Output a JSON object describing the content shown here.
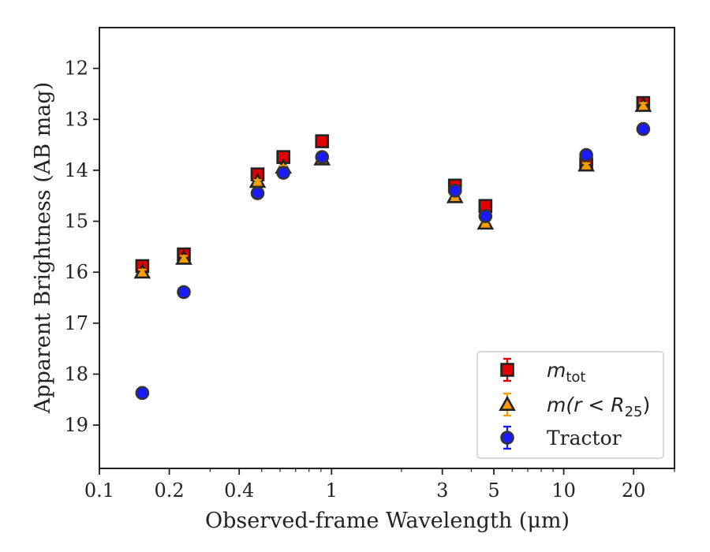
{
  "chart_data": {
    "type": "scatter",
    "xlabel": "Observed-frame Wavelength (μm)",
    "ylabel": "Apparent Brightness (AB mag)",
    "x_scale": "log",
    "xlim": [
      0.1,
      30
    ],
    "ylim": [
      19.85,
      11.2
    ],
    "y_inverted": true,
    "grid": false,
    "legend_position": "lower-right",
    "x_ticks": [
      0.1,
      0.2,
      0.4,
      1,
      3,
      5,
      10,
      20
    ],
    "x_tick_labels": [
      "0.1",
      "0.2",
      "0.4",
      "1",
      "3",
      "5",
      "10",
      "20"
    ],
    "y_ticks": [
      12,
      13,
      14,
      15,
      16,
      17,
      18,
      19
    ],
    "y_tick_labels": [
      "12",
      "13",
      "14",
      "15",
      "16",
      "17",
      "18",
      "19"
    ],
    "series": [
      {
        "name": "m_tot",
        "legend_label": "m",
        "legend_subscript": "tot",
        "marker": "square",
        "color": "#e00000",
        "edge_color": "#222222",
        "error_color": "#e00000",
        "x": [
          0.153,
          0.231,
          0.48,
          0.62,
          0.91,
          3.4,
          4.6,
          12.5,
          22.0
        ],
        "y": [
          15.88,
          15.65,
          14.08,
          13.74,
          13.43,
          14.3,
          14.7,
          13.88,
          12.68
        ],
        "err": [
          0.05,
          0.05,
          0.03,
          0.03,
          0.03,
          0.03,
          0.03,
          0.04,
          0.05
        ]
      },
      {
        "name": "m(r < R_25)",
        "legend_label": "m(r < R",
        "legend_subscript": "25",
        "legend_suffix": ")",
        "marker": "triangle",
        "color": "#ff9900",
        "edge_color": "#222222",
        "error_color": "#f0a000",
        "x": [
          0.153,
          0.231,
          0.48,
          0.62,
          0.91,
          3.4,
          4.6,
          12.5,
          22.0
        ],
        "y": [
          16.0,
          15.73,
          14.22,
          13.94,
          13.78,
          14.52,
          15.04,
          13.9,
          12.73
        ],
        "err": [
          0.05,
          0.05,
          0.03,
          0.03,
          0.03,
          0.03,
          0.03,
          0.04,
          0.05
        ]
      },
      {
        "name": "Tractor",
        "legend_label": "Tractor",
        "marker": "circle",
        "color": "#1a1aff",
        "edge_color": "#333333",
        "error_color": "#1a1aff",
        "x": [
          0.153,
          0.231,
          0.48,
          0.62,
          0.91,
          3.4,
          4.6,
          12.5,
          22.0
        ],
        "y": [
          18.37,
          16.39,
          14.45,
          14.05,
          13.74,
          14.4,
          14.9,
          13.7,
          13.19
        ],
        "err": [
          0.07,
          0.07,
          0.04,
          0.03,
          0.03,
          0.03,
          0.03,
          0.05,
          0.05
        ]
      }
    ]
  }
}
